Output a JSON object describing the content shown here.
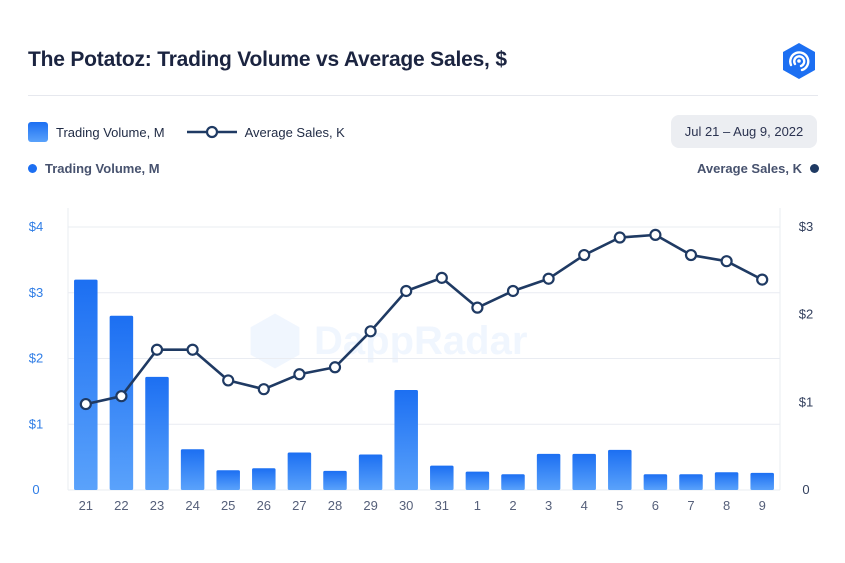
{
  "title": "The Potatoz: Trading Volume vs Average Sales, $",
  "legend": {
    "bar_label": "Trading Volume, M",
    "line_label": "Average Sales, K"
  },
  "date_range": "Jul 21 – Aug 9, 2022",
  "axis_names": {
    "left": "Trading Volume, M",
    "right": "Average Sales, K"
  },
  "watermark": "DappRadar",
  "colors": {
    "bar": "#1c6ff2",
    "bar_light": "#5aa2fb",
    "line": "#1f3a63",
    "left_axis": "#2f7de6",
    "grid": "#e9ecf2"
  },
  "icons": {
    "logo": "dappradar-hexagon-logo-icon"
  },
  "chart_data": {
    "type": "bar",
    "title": "The Potatoz: Trading Volume vs Average Sales, $",
    "categories": [
      "21",
      "22",
      "23",
      "24",
      "25",
      "26",
      "27",
      "28",
      "29",
      "30",
      "31",
      "1",
      "2",
      "3",
      "4",
      "5",
      "6",
      "7",
      "8",
      "9"
    ],
    "series": [
      {
        "name": "Trading Volume, M",
        "type": "bar",
        "axis": "left",
        "values": [
          3.2,
          2.65,
          1.72,
          0.62,
          0.3,
          0.33,
          0.57,
          0.29,
          0.54,
          1.52,
          0.37,
          0.28,
          0.24,
          0.55,
          0.55,
          0.61,
          0.24,
          0.24,
          0.27,
          0.26
        ]
      },
      {
        "name": "Average Sales, K",
        "type": "line",
        "axis": "right",
        "values": [
          0.98,
          1.07,
          1.6,
          1.6,
          1.25,
          1.15,
          1.32,
          1.4,
          1.81,
          2.27,
          2.42,
          2.08,
          2.27,
          2.41,
          2.68,
          2.88,
          2.91,
          2.68,
          2.61,
          2.4
        ]
      }
    ],
    "y_left": {
      "ylim": [
        0,
        4
      ],
      "ticks": [
        0,
        1,
        2,
        3,
        4
      ],
      "tick_labels": [
        "0",
        "$1",
        "$2",
        "$3",
        "$4"
      ]
    },
    "y_right": {
      "ylim": [
        0,
        3
      ],
      "ticks": [
        0,
        1,
        2,
        3
      ],
      "tick_labels": [
        "0",
        "$1",
        "$2",
        "$3"
      ]
    },
    "grid": true,
    "legend_position": "top-left"
  }
}
